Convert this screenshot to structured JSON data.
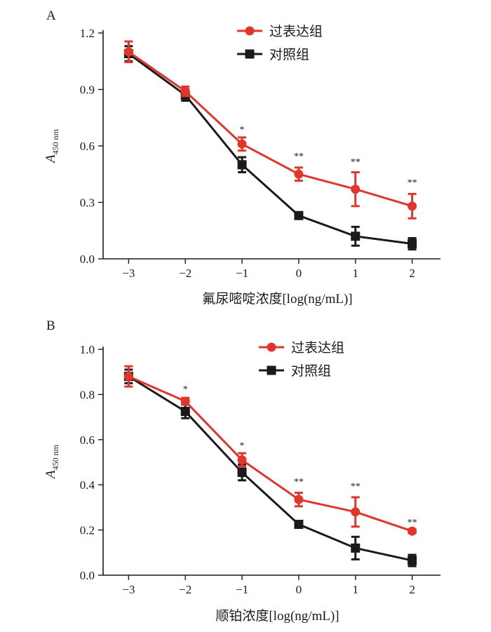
{
  "colors": {
    "overexpression": "#e0362b",
    "control": "#1a1a1a",
    "axis": "#1a1a1a"
  },
  "chart_data": [
    {
      "panel_label": "A",
      "type": "line",
      "x": [
        -3,
        -2,
        -1,
        0,
        1,
        2
      ],
      "x_tick_labels": [
        "−3",
        "−2",
        "−1",
        "0",
        "1",
        "2"
      ],
      "y_ticks": [
        0.0,
        0.3,
        0.6,
        0.9,
        1.2
      ],
      "y_tick_labels": [
        "0.0",
        "0.3",
        "0.6",
        "0.9",
        "1.2"
      ],
      "ylim": [
        0,
        1.2
      ],
      "xlim": [
        -3.45,
        2.5
      ],
      "ylabel_main": "A",
      "ylabel_sub": "450 nm",
      "xlabel": "氟尿嘧啶浓度[log(ng/mL)]",
      "legend_position": "top-center",
      "series": [
        {
          "name": "过表达组",
          "marker": "circle",
          "color": "#e0362b",
          "values": [
            1.1,
            0.89,
            0.61,
            0.45,
            0.37,
            0.28
          ],
          "errors": [
            0.055,
            0.025,
            0.035,
            0.035,
            0.09,
            0.065
          ]
        },
        {
          "name": "对照组",
          "marker": "square",
          "color": "#1a1a1a",
          "values": [
            1.09,
            0.87,
            0.5,
            0.23,
            0.12,
            0.08
          ],
          "errors": [
            0.04,
            0.03,
            0.04,
            0.01,
            0.05,
            0.03
          ]
        }
      ],
      "significance": [
        "",
        "",
        "*",
        "**",
        "**",
        "**"
      ],
      "significance_at": [
        0,
        0,
        0.67,
        0.53,
        0.5,
        0.39
      ]
    },
    {
      "panel_label": "B",
      "type": "line",
      "x": [
        -3,
        -2,
        -1,
        0,
        1,
        2
      ],
      "x_tick_labels": [
        "−3",
        "−2",
        "−1",
        "0",
        "1",
        "2"
      ],
      "y_ticks": [
        0.0,
        0.2,
        0.4,
        0.6,
        0.8,
        1.0
      ],
      "y_tick_labels": [
        "0.0",
        "0.2",
        "0.4",
        "0.6",
        "0.8",
        "1.0"
      ],
      "ylim": [
        0,
        1.0
      ],
      "xlim": [
        -3.45,
        2.5
      ],
      "ylabel_main": "A",
      "ylabel_sub": "450 nm",
      "xlabel": "顺铂浓度[log(ng/mL)]",
      "legend_position": "top-center",
      "series": [
        {
          "name": "过表达组",
          "marker": "circle",
          "color": "#e0362b",
          "values": [
            0.88,
            0.77,
            0.51,
            0.335,
            0.28,
            0.195
          ],
          "errors": [
            0.045,
            0.015,
            0.03,
            0.03,
            0.065,
            0.008
          ]
        },
        {
          "name": "对照组",
          "marker": "square",
          "color": "#1a1a1a",
          "values": [
            0.88,
            0.725,
            0.455,
            0.225,
            0.12,
            0.065
          ],
          "errors": [
            0.03,
            0.03,
            0.035,
            0.01,
            0.05,
            0.025
          ]
        }
      ],
      "significance": [
        "",
        "*",
        "*",
        "**",
        "**",
        "**"
      ],
      "significance_at": [
        0,
        0.81,
        0.56,
        0.4,
        0.38,
        0.22
      ]
    }
  ]
}
